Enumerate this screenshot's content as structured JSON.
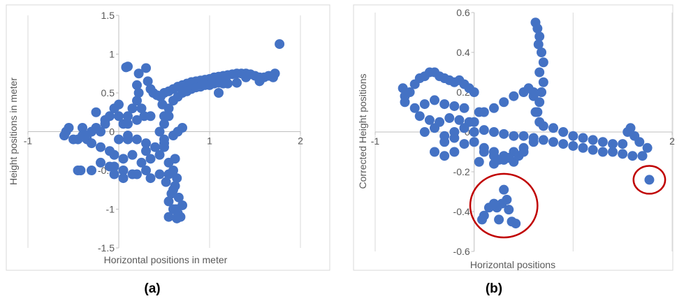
{
  "colors": {
    "marker": "#4472C4",
    "grid": "#d9d9d9",
    "axis": "#bfbfbf",
    "circle": "#c00000",
    "frame": "#d9d9d9"
  },
  "chart_data": [
    {
      "type": "scatter",
      "caption": "(a)",
      "xlabel": "Horizontal positions in meter",
      "ylabel": "Height positions in meter",
      "xlim": [
        -1,
        2
      ],
      "ylim": [
        -1.5,
        1.5
      ],
      "xticks": [
        -1,
        0,
        1,
        2
      ],
      "yticks": [
        -1.5,
        -1,
        -0.5,
        0,
        0.5,
        1,
        1.5
      ],
      "grid": true,
      "legend": "none",
      "series": [
        {
          "x": [
            1.77,
            0.08,
            0.1,
            0.2,
            0.22,
            0.3,
            0.32,
            0.35,
            0.38,
            0.42,
            0.46,
            0.5,
            0.55,
            0.6,
            0.65,
            0.7,
            0.75,
            0.8,
            0.85,
            0.9,
            0.95,
            1.0,
            1.05,
            1.1,
            1.15,
            1.2,
            1.25,
            1.3,
            1.35,
            1.4,
            1.45,
            1.5,
            1.55,
            1.6,
            1.65,
            1.7,
            1.72,
            1.55,
            1.4,
            1.1,
            0.5,
            0.55,
            0.6,
            0.65,
            0.7,
            0.75,
            0.8,
            0.85,
            0.9,
            0.95,
            1.0,
            1.05,
            1.1,
            1.15,
            1.2,
            1.3,
            0.48,
            0.45,
            0.5,
            0.55,
            0.25,
            0.28,
            0.2,
            0.22,
            0.15,
            0.1,
            0.05,
            0.0,
            -0.05,
            -0.1,
            -0.15,
            -0.2,
            -0.25,
            -0.3,
            -0.35,
            -0.4,
            -0.45,
            -0.55,
            -0.6,
            -0.58,
            -0.5,
            -0.4,
            -0.35,
            -0.3,
            -0.2,
            -0.1,
            0.0,
            0.1,
            0.2,
            0.3,
            0.4,
            0.5,
            0.6,
            0.65,
            0.7,
            -0.05,
            0.05,
            0.15,
            0.25,
            0.35,
            0.45,
            0.55,
            0.62,
            0.05,
            -0.1,
            -0.2,
            -0.3,
            -0.42,
            -0.05,
            0.15,
            0.3,
            0.45,
            0.55,
            0.0,
            -0.15,
            -0.25,
            0.1,
            0.2,
            0.35,
            0.5,
            0.6,
            0.64,
            0.62,
            0.58,
            0.55,
            0.6,
            0.65,
            0.68,
            0.7,
            0.66,
            0.6,
            0.64,
            0.55,
            0.52,
            0.63,
            0.35,
            0.2,
            0.05,
            -0.05,
            -0.45,
            0.1,
            0.3,
            0.5
          ],
          "y": [
            1.13,
            0.83,
            0.84,
            0.6,
            0.75,
            0.82,
            0.65,
            0.55,
            0.5,
            0.47,
            0.45,
            0.5,
            0.52,
            0.55,
            0.58,
            0.6,
            0.62,
            0.64,
            0.65,
            0.66,
            0.67,
            0.68,
            0.7,
            0.71,
            0.72,
            0.73,
            0.74,
            0.75,
            0.75,
            0.75,
            0.74,
            0.72,
            0.7,
            0.7,
            0.72,
            0.7,
            0.75,
            0.65,
            0.7,
            0.5,
            0.2,
            0.3,
            0.4,
            0.45,
            0.5,
            0.52,
            0.55,
            0.57,
            0.58,
            0.6,
            0.6,
            0.62,
            0.63,
            0.62,
            0.62,
            0.63,
            0.35,
            0.0,
            0.1,
            0.2,
            0.3,
            0.2,
            0.4,
            0.5,
            0.3,
            0.2,
            0.1,
            0.35,
            0.3,
            0.2,
            0.1,
            0.0,
            0.05,
            0.0,
            -0.05,
            0.05,
            -0.1,
            0.05,
            -0.05,
            0.0,
            -0.1,
            -0.05,
            -0.1,
            -0.15,
            -0.2,
            -0.25,
            -0.1,
            -0.05,
            -0.1,
            -0.15,
            -0.2,
            -0.1,
            -0.05,
            0.0,
            0.05,
            -0.3,
            -0.35,
            -0.3,
            -0.4,
            -0.35,
            -0.3,
            -0.4,
            -0.35,
            -0.5,
            -0.45,
            -0.4,
            -0.5,
            -0.5,
            -0.55,
            -0.55,
            -0.5,
            -0.55,
            -0.55,
            0.2,
            0.15,
            0.25,
            0.1,
            0.15,
            0.2,
            -0.2,
            -0.5,
            -0.6,
            -0.7,
            -0.8,
            -0.9,
            -1.0,
            -1.05,
            -1.1,
            -0.95,
            -0.85,
            -0.75,
            -1.12,
            -1.1,
            -0.65,
            -1.0,
            -0.6,
            -0.55,
            -0.6,
            -0.45,
            -0.5,
            -0.1,
            -0.25,
            -0.15
          ]
        }
      ]
    },
    {
      "type": "scatter",
      "caption": "(b)",
      "xlabel": "Horizontal positions",
      "ylabel": "Corrected Height  positions",
      "xlim": [
        -1,
        2
      ],
      "ylim": [
        -0.6,
        0.6
      ],
      "xticks": [
        -1,
        0,
        1,
        2
      ],
      "yticks": [
        -0.6,
        -0.4,
        -0.2,
        0,
        0.2,
        0.4,
        0.6
      ],
      "grid": true,
      "legend": "none",
      "annotations": [
        {
          "type": "circle",
          "cx": 0.3,
          "cy": -0.37,
          "rx": 0.34,
          "ry": 0.16
        },
        {
          "type": "circle",
          "cx": 1.77,
          "cy": -0.24,
          "rx": 0.16,
          "ry": 0.07
        }
      ],
      "series": [
        {
          "x": [
            0.62,
            0.64,
            0.66,
            0.65,
            0.68,
            0.7,
            0.66,
            0.7,
            0.68,
            0.66,
            0.64,
            0.66,
            -0.72,
            -0.7,
            -0.65,
            -0.6,
            -0.55,
            -0.5,
            -0.45,
            -0.4,
            -0.35,
            -0.3,
            -0.25,
            -0.2,
            -0.15,
            -0.1,
            -0.05,
            0.0,
            -0.7,
            -0.6,
            -0.5,
            -0.4,
            -0.3,
            -0.2,
            -0.1,
            -0.55,
            -0.45,
            -0.35,
            -0.25,
            -0.15,
            -0.05,
            0.05,
            -0.5,
            -0.4,
            -0.3,
            -0.2,
            -0.1,
            0.0,
            0.1,
            0.2,
            0.3,
            0.4,
            0.5,
            0.6,
            0.62,
            -0.3,
            -0.2,
            -0.1,
            0.0,
            0.1,
            0.2,
            0.3,
            0.4,
            0.5,
            0.6,
            -0.1,
            0.0,
            0.1,
            0.2,
            0.3,
            0.4,
            0.5,
            0.6,
            0.7,
            0.8,
            0.9,
            1.0,
            1.1,
            1.2,
            1.3,
            1.4,
            1.5,
            1.6,
            1.7,
            1.75,
            0.7,
            0.8,
            0.9,
            1.0,
            1.1,
            1.2,
            1.3,
            1.4,
            1.5,
            1.55,
            1.67,
            1.58,
            1.62,
            0.2,
            0.3,
            0.35,
            0.4,
            0.45,
            0.05,
            0.1,
            0.2,
            0.25,
            0.35,
            0.5,
            0.55,
            0.6,
            -0.4,
            -0.3,
            -0.2,
            0.3,
            0.33,
            0.28,
            0.23,
            0.2,
            0.15,
            0.1,
            0.08,
            0.25,
            0.35,
            0.38,
            0.42,
            1.77
          ],
          "y": [
            0.55,
            0.52,
            0.48,
            0.44,
            0.4,
            0.35,
            0.3,
            0.25,
            0.2,
            0.15,
            0.1,
            0.05,
            0.22,
            0.18,
            0.2,
            0.24,
            0.27,
            0.28,
            0.3,
            0.3,
            0.28,
            0.27,
            0.26,
            0.25,
            0.26,
            0.24,
            0.22,
            0.2,
            0.15,
            0.12,
            0.14,
            0.16,
            0.14,
            0.13,
            0.12,
            0.08,
            0.06,
            0.05,
            0.07,
            0.06,
            0.05,
            0.1,
            0.0,
            0.02,
            -0.02,
            0.0,
            0.02,
            0.05,
            0.1,
            0.12,
            0.15,
            0.18,
            0.2,
            0.18,
            0.1,
            -0.05,
            -0.03,
            -0.06,
            -0.05,
            -0.08,
            -0.1,
            -0.12,
            -0.1,
            -0.08,
            -0.05,
            0.02,
            0.0,
            0.01,
            0.0,
            -0.01,
            -0.02,
            -0.02,
            -0.03,
            -0.04,
            -0.05,
            -0.06,
            -0.07,
            -0.08,
            -0.09,
            -0.1,
            -0.1,
            -0.11,
            -0.12,
            -0.12,
            -0.08,
            0.03,
            0.02,
            0.0,
            -0.02,
            -0.03,
            -0.04,
            -0.05,
            -0.06,
            -0.06,
            0.0,
            -0.05,
            0.02,
            -0.02,
            -0.12,
            -0.14,
            -0.13,
            -0.15,
            -0.12,
            -0.15,
            -0.1,
            -0.16,
            -0.14,
            -0.13,
            -0.1,
            0.22,
            0.2,
            -0.1,
            -0.12,
            -0.1,
            -0.29,
            -0.34,
            -0.36,
            -0.38,
            -0.36,
            -0.38,
            -0.42,
            -0.44,
            -0.44,
            -0.39,
            -0.45,
            -0.46,
            -0.24
          ]
        }
      ]
    }
  ]
}
